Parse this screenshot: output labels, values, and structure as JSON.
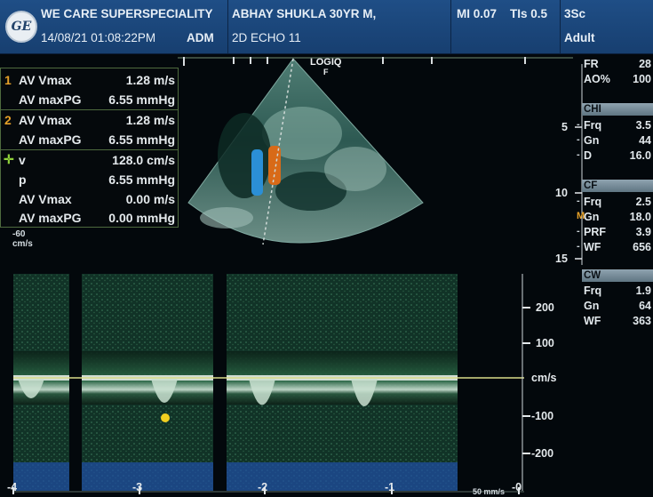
{
  "header": {
    "logo_text": "GE",
    "hospital_name": "WE CARE SUPERSPECIALITY",
    "datetime": "14/08/21 01:08:22PM",
    "operator": "ADM",
    "patient": "ABHAY SHUKLA 30YR M,",
    "study": "2D ECHO 11",
    "mi": "MI 0.07",
    "tis": "TIs 0.5",
    "probe": "3Sc",
    "preset": "Adult"
  },
  "brand": {
    "model": "LOGIQ",
    "model_sub": "F"
  },
  "measurements": [
    {
      "marker": "1",
      "marker_color": "#e5a028",
      "label": "AV Vmax",
      "value": "1.28 m/s"
    },
    {
      "marker": "",
      "label": "AV maxPG",
      "value": "6.55 mmHg"
    },
    {
      "marker": "2",
      "marker_color": "#e5a028",
      "label": "AV Vmax",
      "value": "1.28 m/s"
    },
    {
      "marker": "",
      "label": "AV maxPG",
      "value": "6.55 mmHg"
    },
    {
      "marker": "cursor",
      "marker_color": "#8fd13a",
      "label": "v",
      "value": "128.0 cm/s"
    },
    {
      "marker": "",
      "label": "p",
      "value": "6.55 mmHg"
    },
    {
      "marker": "",
      "label": "AV Vmax",
      "value": "0.00 m/s"
    },
    {
      "marker": "",
      "label": "AV maxPG",
      "value": "0.00 mmHg"
    }
  ],
  "color_scale": {
    "top": "-60",
    "unit": "cm/s"
  },
  "right_panel": {
    "FR": "28",
    "AO_label": "AO%",
    "AO": "100",
    "chi": {
      "title": "CHI",
      "Frq": "3.5",
      "Gn": "44",
      "D": "16.0"
    },
    "cf": {
      "title": "CF",
      "Frq": "2.5",
      "Gn": "18.0",
      "PRF": "3.9",
      "WF": "656"
    },
    "cw": {
      "title": "CW",
      "Frq": "1.9",
      "Gn": "64",
      "WF": "363"
    }
  },
  "depth_marks": [
    "5",
    "10",
    "15"
  ],
  "velocity_scale": {
    "labels": [
      "200",
      "100",
      "cm/s",
      "-100",
      "-200"
    ]
  },
  "time_axis": [
    "-4",
    "-3",
    "-2",
    "-1",
    "-0"
  ],
  "sweep_speed": "50 mm/s",
  "colors": {
    "header": "#1f4e86",
    "baseline": "#d9dc8a",
    "caliper": "#f2d020",
    "doppler_fill": "#cfe5d6"
  }
}
